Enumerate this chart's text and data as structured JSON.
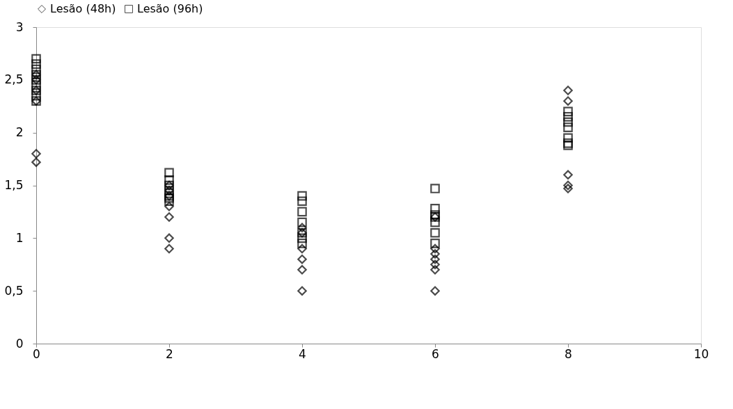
{
  "chart_data": {
    "type": "scatter",
    "xlim": [
      0,
      10
    ],
    "xticks": [
      0,
      2,
      4,
      6,
      8,
      10
    ],
    "ylim": [
      0,
      3
    ],
    "yticks": [
      0,
      {
        "value": 0.5,
        "label": "0,5"
      },
      1,
      {
        "value": 1.5,
        "label": "1,5"
      },
      2,
      {
        "value": 2.5,
        "label": "2,5"
      },
      3
    ],
    "grid": false,
    "legend": "top",
    "series": [
      {
        "name": "Lesão (48h)",
        "color": "#000000",
        "marker": "diamond",
        "x": [
          0,
          0,
          0,
          0,
          0,
          0,
          2,
          2,
          2,
          2,
          2,
          2,
          2,
          4,
          4,
          4,
          4,
          4,
          4,
          6,
          6,
          6,
          6,
          6,
          6,
          6,
          8,
          8,
          8,
          8,
          8
        ],
        "values": [
          1.8,
          1.72,
          2.3,
          2.4,
          2.5,
          2.55,
          1.5,
          1.45,
          1.4,
          1.3,
          1.2,
          1.0,
          0.9,
          1.1,
          1.05,
          0.9,
          0.8,
          0.7,
          0.5,
          1.2,
          0.9,
          0.85,
          0.8,
          0.75,
          0.7,
          0.5,
          2.4,
          2.3,
          1.6,
          1.5,
          1.47
        ]
      },
      {
        "name": "Lesão (96h)",
        "color": "#000000",
        "marker": "square",
        "x": [
          0,
          0,
          0,
          0,
          0,
          0,
          0,
          0,
          0,
          2,
          2,
          2,
          2,
          2,
          2,
          2,
          4,
          4,
          4,
          4,
          4,
          4,
          4,
          6,
          6,
          6,
          6,
          6,
          6,
          6,
          8,
          8,
          8,
          8,
          8,
          8,
          8
        ],
        "values": [
          2.7,
          2.65,
          2.6,
          2.55,
          2.5,
          2.45,
          2.4,
          2.35,
          2.3,
          1.62,
          1.55,
          1.5,
          1.45,
          1.4,
          1.38,
          1.35,
          1.4,
          1.35,
          1.25,
          1.15,
          1.05,
          1.0,
          0.95,
          1.47,
          1.28,
          1.22,
          1.2,
          1.15,
          1.05,
          0.95,
          2.2,
          2.15,
          2.1,
          2.05,
          1.95,
          1.9,
          1.88
        ]
      }
    ]
  }
}
